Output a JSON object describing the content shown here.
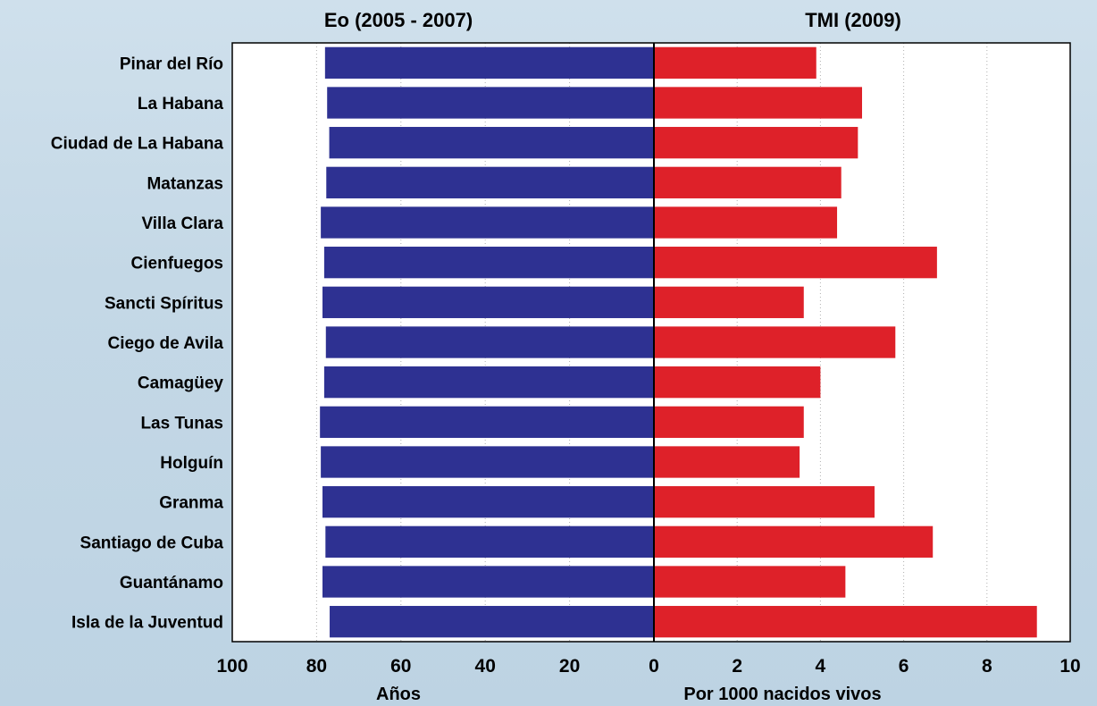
{
  "chart_data": {
    "type": "bar",
    "orientation": "horizontal",
    "layout": "butterfly",
    "categories": [
      "Pinar del Río",
      "La Habana",
      "Ciudad de La Habana",
      "Matanzas",
      "Villa Clara",
      "Cienfuegos",
      "Sancti Spíritus",
      "Ciego de Avila",
      "Camagüey",
      "Las Tunas",
      "Holguín",
      "Granma",
      "Santiago de Cuba",
      "Guantánamo",
      "Isla de la Juventud"
    ],
    "series": [
      {
        "name": "Eo (2005 - 2007)",
        "xlabel": "Años",
        "color": "#2e3192",
        "direction": "left",
        "xlim": [
          0,
          100
        ],
        "ticks": [
          "100",
          "80",
          "60",
          "40",
          "20",
          "0"
        ],
        "tick_values": [
          100,
          80,
          60,
          40,
          20,
          0
        ],
        "values": [
          78.0,
          77.5,
          77.0,
          77.7,
          79.0,
          78.2,
          78.6,
          77.8,
          78.2,
          79.2,
          79.0,
          78.6,
          77.9,
          78.6,
          76.9
        ]
      },
      {
        "name": "TMI (2009)",
        "xlabel": "Por 1000 nacidos vivos",
        "color": "#de2129",
        "direction": "right",
        "xlim": [
          0,
          10
        ],
        "ticks": [
          "0",
          "2",
          "4",
          "6",
          "8",
          "10"
        ],
        "tick_values": [
          0,
          2,
          4,
          6,
          8,
          10
        ],
        "values": [
          3.9,
          5.0,
          4.9,
          4.5,
          4.4,
          6.8,
          3.6,
          5.8,
          4.0,
          3.6,
          3.5,
          5.3,
          6.7,
          4.6,
          9.2
        ]
      }
    ],
    "grid": "vertical dotted"
  }
}
